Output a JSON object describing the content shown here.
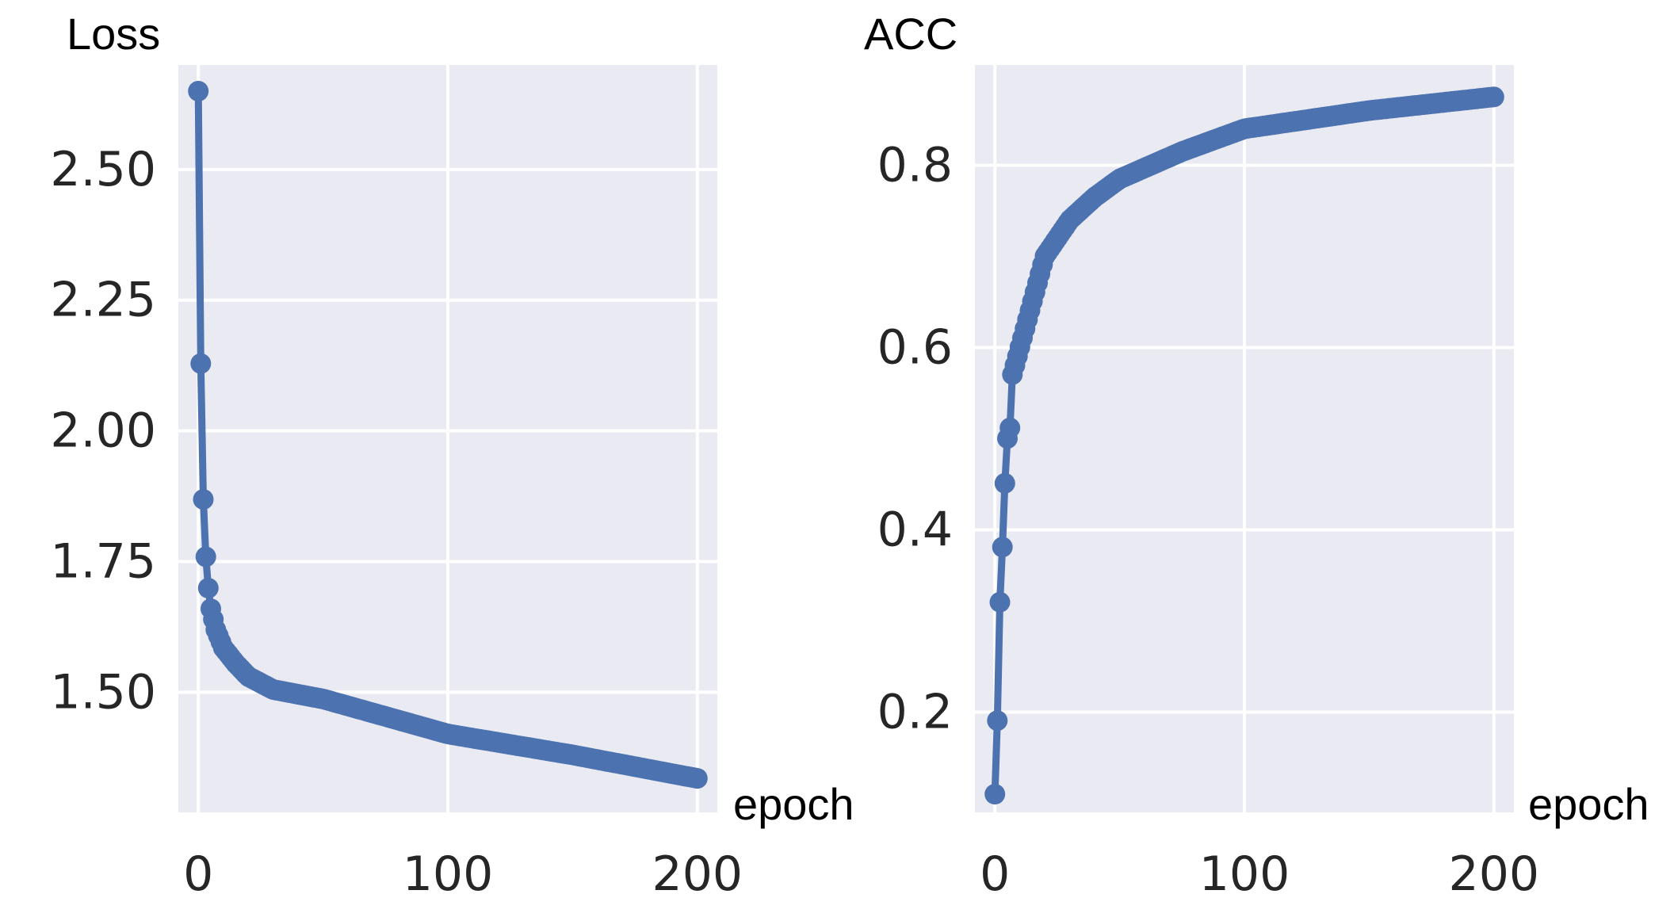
{
  "chart_data": [
    {
      "type": "line",
      "title": "",
      "ylabel": "Loss",
      "xlabel": "epoch",
      "xlim": [
        -8,
        208
      ],
      "ylim": [
        1.27,
        2.7
      ],
      "xticks": [
        0,
        100,
        200
      ],
      "xtick_labels": [
        "0",
        "100",
        "200"
      ],
      "yticks": [
        1.5,
        1.75,
        2.0,
        2.25,
        2.5
      ],
      "ytick_labels": [
        "1.50",
        "1.75",
        "2.00",
        "2.25",
        "2.50"
      ],
      "grid": true,
      "style": "line with circular markers",
      "series": [
        {
          "color": "#4c72b0",
          "anchors_x": [
            0,
            1,
            2,
            3,
            4,
            5,
            7,
            10,
            15,
            20,
            30,
            50,
            100,
            150,
            200
          ],
          "anchors_y": [
            2.65,
            2.13,
            1.87,
            1.76,
            1.7,
            1.66,
            1.62,
            1.585,
            1.555,
            1.53,
            1.505,
            1.487,
            1.42,
            1.38,
            1.335
          ],
          "points": 200
        }
      ]
    },
    {
      "type": "line",
      "title": "",
      "ylabel": "ACC",
      "xlabel": "epoch",
      "xlim": [
        -8,
        208
      ],
      "ylim": [
        0.09,
        0.91
      ],
      "xticks": [
        0,
        100,
        200
      ],
      "xtick_labels": [
        "0",
        "100",
        "200"
      ],
      "yticks": [
        0.2,
        0.4,
        0.6,
        0.8
      ],
      "ytick_labels": [
        "0.2",
        "0.4",
        "0.6",
        "0.8"
      ],
      "grid": true,
      "style": "line with circular markers",
      "series": [
        {
          "color": "#4c72b0",
          "anchors_x": [
            0,
            1,
            2,
            3,
            4,
            5,
            6,
            7,
            10,
            15,
            20,
            25,
            30,
            40,
            50,
            75,
            100,
            150,
            200
          ],
          "anchors_y": [
            0.11,
            0.19,
            0.32,
            0.38,
            0.45,
            0.5,
            0.51,
            0.57,
            0.6,
            0.65,
            0.7,
            0.72,
            0.74,
            0.765,
            0.785,
            0.815,
            0.84,
            0.86,
            0.875
          ],
          "points": 200
        }
      ]
    }
  ]
}
